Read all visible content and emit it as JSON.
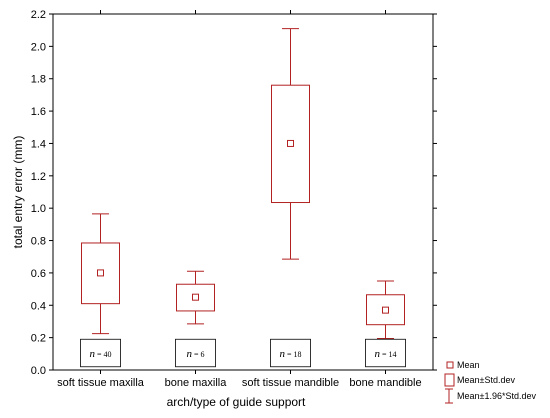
{
  "chart_data": {
    "type": "box",
    "xlabel": "arch/type of guide support",
    "ylabel": "total entry error (mm)",
    "ylim": [
      0.0,
      2.2
    ],
    "yticks": [
      "0.0",
      "0.2",
      "0.4",
      "0.6",
      "0.8",
      "1.0",
      "1.2",
      "1.4",
      "1.6",
      "1.8",
      "2.0",
      "2.2"
    ],
    "categories": [
      "soft tissue maxilla",
      "bone maxilla",
      "soft tissue mandible",
      "bone mandible"
    ],
    "mean": [
      0.6,
      0.45,
      1.4,
      0.37
    ],
    "std_low": [
      0.41,
      0.365,
      1.035,
      0.28
    ],
    "std_high": [
      0.785,
      0.53,
      1.76,
      0.465
    ],
    "whisker_low": [
      0.225,
      0.285,
      0.685,
      0.195
    ],
    "whisker_high": [
      0.965,
      0.61,
      2.11,
      0.55
    ],
    "n_labels": [
      {
        "italic": "n",
        "rest": " = 40"
      },
      {
        "italic": "n",
        "rest": " = 6"
      },
      {
        "italic": "n",
        "rest": " = 18"
      },
      {
        "italic": "n",
        "rest": " = 14"
      }
    ],
    "legend": {
      "position": "bottom-right",
      "items": [
        "Mean",
        "Mean±Std.dev",
        "Mean±1.96*Std.dev"
      ]
    },
    "grid": false,
    "color": "#b22222"
  }
}
